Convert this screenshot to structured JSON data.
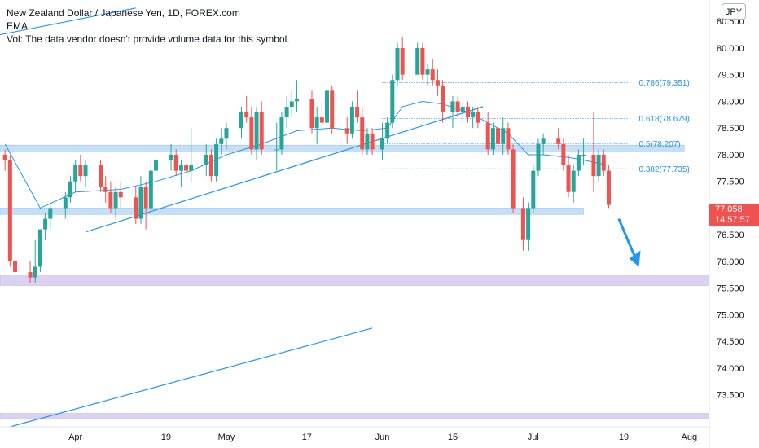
{
  "legend": {
    "title": "New Zealand Dollar / Japanese Yen, 1D, FOREX.com",
    "indicator": "EMA",
    "volume_note": "Vol: The data vendor doesn't provide volume data for this symbol."
  },
  "currency_label": "JPY",
  "last_price": {
    "value": "77.058",
    "countdown": "14:57:57"
  },
  "colors": {
    "up": "#26a69a",
    "down": "#ef5350",
    "ema": "#2196f3",
    "zone_blue": "#bbd9f7",
    "zone_purple": "#d5c9ee",
    "arrow": "#2196f3"
  },
  "chart_data": {
    "type": "candlestick",
    "symbol": "NZDJPY",
    "timeframe": "1D",
    "ylim": [
      72.9,
      80.9
    ],
    "xlim": [
      "2020-03-17",
      "2020-08-05"
    ],
    "x_ticks": [
      {
        "label": "Apr",
        "date": "2020-04-01"
      },
      {
        "label": "19",
        "date": "2020-04-19"
      },
      {
        "label": "May",
        "date": "2020-05-01"
      },
      {
        "label": "17",
        "date": "2020-05-17"
      },
      {
        "label": "Jun",
        "date": "2020-06-01"
      },
      {
        "label": "15",
        "date": "2020-06-15"
      },
      {
        "label": "Jul",
        "date": "2020-07-01"
      },
      {
        "label": "19",
        "date": "2020-07-19"
      },
      {
        "label": "Aug",
        "date": "2020-08-01"
      }
    ],
    "y_ticks": [
      "80.500",
      "80.000",
      "79.500",
      "79.000",
      "78.500",
      "78.000",
      "77.500",
      "77.000",
      "76.500",
      "76.000",
      "75.500",
      "75.000",
      "74.500",
      "74.000",
      "73.500"
    ],
    "fib_levels": [
      {
        "label": "0.786(79.351)",
        "price": 79.351
      },
      {
        "label": "0.618(78.679)",
        "price": 78.679
      },
      {
        "label": "0.5(78.207)",
        "price": 78.207
      },
      {
        "label": "0.382(77.735)",
        "price": 77.735
      }
    ],
    "zones": [
      {
        "kind": "resistance",
        "low": 78.05,
        "high": 78.18,
        "color": "blue",
        "from": "2020-03-17",
        "to": "2020-07-31"
      },
      {
        "kind": "support",
        "low": 76.88,
        "high": 77.0,
        "color": "blue",
        "from": "2020-03-17",
        "to": "2020-07-11"
      },
      {
        "kind": "demand",
        "low": 75.55,
        "high": 75.75,
        "color": "purple",
        "from": "2020-03-17",
        "to": "2020-08-05"
      },
      {
        "kind": "demand",
        "low": 73.05,
        "high": 73.15,
        "color": "purple",
        "from": "2020-03-17",
        "to": "2020-08-05"
      }
    ],
    "trendlines": [
      {
        "from": {
          "date": "2020-03-17",
          "price": 80.25
        },
        "to": {
          "date": "2020-04-13",
          "price": 80.75
        }
      },
      {
        "from": {
          "date": "2020-04-03",
          "price": 76.55
        },
        "to": {
          "date": "2020-06-21",
          "price": 78.9
        }
      },
      {
        "from": {
          "date": "2020-03-19",
          "price": 72.9
        },
        "to": {
          "date": "2020-05-30",
          "price": 74.75
        }
      }
    ],
    "candles": [
      {
        "date": "2020-03-18",
        "o": 78.0,
        "h": 78.1,
        "l": 77.7,
        "c": 77.9
      },
      {
        "date": "2020-03-19",
        "o": 77.9,
        "h": 78.0,
        "l": 75.9,
        "c": 76.0
      },
      {
        "date": "2020-03-20",
        "o": 76.0,
        "h": 76.2,
        "l": 75.6,
        "c": 75.8
      },
      {
        "date": "2020-03-23",
        "o": 75.8,
        "h": 76.0,
        "l": 75.6,
        "c": 75.7
      },
      {
        "date": "2020-03-24",
        "o": 75.7,
        "h": 76.4,
        "l": 75.6,
        "c": 75.9
      },
      {
        "date": "2020-03-25",
        "o": 75.9,
        "h": 76.6,
        "l": 75.8,
        "c": 76.6
      },
      {
        "date": "2020-03-26",
        "o": 76.6,
        "h": 76.9,
        "l": 76.4,
        "c": 76.8
      },
      {
        "date": "2020-03-27",
        "o": 76.8,
        "h": 77.1,
        "l": 76.6,
        "c": 77.0
      },
      {
        "date": "2020-03-30",
        "o": 77.0,
        "h": 77.3,
        "l": 76.8,
        "c": 77.2
      },
      {
        "date": "2020-03-31",
        "o": 77.2,
        "h": 77.6,
        "l": 77.1,
        "c": 77.5
      },
      {
        "date": "2020-04-01",
        "o": 77.5,
        "h": 77.9,
        "l": 77.3,
        "c": 77.8
      },
      {
        "date": "2020-04-02",
        "o": 77.8,
        "h": 78.0,
        "l": 77.5,
        "c": 77.6
      },
      {
        "date": "2020-04-03",
        "o": 77.6,
        "h": 77.9,
        "l": 77.4,
        "c": 77.8
      },
      {
        "date": "2020-04-06",
        "o": 77.8,
        "h": 77.9,
        "l": 77.3,
        "c": 77.4
      },
      {
        "date": "2020-04-07",
        "o": 77.4,
        "h": 77.6,
        "l": 77.1,
        "c": 77.3
      },
      {
        "date": "2020-04-08",
        "o": 77.3,
        "h": 77.5,
        "l": 76.9,
        "c": 77.0
      },
      {
        "date": "2020-04-09",
        "o": 77.0,
        "h": 77.4,
        "l": 76.8,
        "c": 77.3
      },
      {
        "date": "2020-04-10",
        "o": 77.3,
        "h": 77.5,
        "l": 77.0,
        "c": 77.2
      },
      {
        "date": "2020-04-13",
        "o": 77.2,
        "h": 77.4,
        "l": 76.7,
        "c": 76.8
      },
      {
        "date": "2020-04-14",
        "o": 76.8,
        "h": 77.6,
        "l": 76.7,
        "c": 77.4
      },
      {
        "date": "2020-04-15",
        "o": 77.4,
        "h": 77.5,
        "l": 76.6,
        "c": 77.0
      },
      {
        "date": "2020-04-16",
        "o": 77.0,
        "h": 77.8,
        "l": 76.9,
        "c": 77.7
      },
      {
        "date": "2020-04-17",
        "o": 77.7,
        "h": 78.0,
        "l": 77.5,
        "c": 77.9
      },
      {
        "date": "2020-04-20",
        "o": 77.9,
        "h": 78.2,
        "l": 77.7,
        "c": 78.0
      },
      {
        "date": "2020-04-21",
        "o": 78.0,
        "h": 78.1,
        "l": 77.6,
        "c": 77.7
      },
      {
        "date": "2020-04-22",
        "o": 77.7,
        "h": 77.9,
        "l": 77.4,
        "c": 77.8
      },
      {
        "date": "2020-04-23",
        "o": 77.8,
        "h": 78.0,
        "l": 77.5,
        "c": 77.7
      },
      {
        "date": "2020-04-24",
        "o": 77.7,
        "h": 78.5,
        "l": 77.5,
        "c": 77.8
      },
      {
        "date": "2020-04-27",
        "o": 77.8,
        "h": 78.2,
        "l": 77.6,
        "c": 78.0
      },
      {
        "date": "2020-04-28",
        "o": 78.0,
        "h": 78.1,
        "l": 77.5,
        "c": 77.6
      },
      {
        "date": "2020-04-29",
        "o": 77.6,
        "h": 78.3,
        "l": 77.5,
        "c": 78.2
      },
      {
        "date": "2020-04-30",
        "o": 78.2,
        "h": 78.5,
        "l": 78.0,
        "c": 78.3
      },
      {
        "date": "2020-05-01",
        "o": 78.3,
        "h": 78.6,
        "l": 78.1,
        "c": 78.5
      },
      {
        "date": "2020-05-04",
        "o": 78.5,
        "h": 78.9,
        "l": 78.3,
        "c": 78.8
      },
      {
        "date": "2020-05-05",
        "o": 78.8,
        "h": 79.1,
        "l": 78.6,
        "c": 78.7
      },
      {
        "date": "2020-05-06",
        "o": 78.7,
        "h": 78.9,
        "l": 78.0,
        "c": 78.1
      },
      {
        "date": "2020-05-07",
        "o": 78.1,
        "h": 78.9,
        "l": 77.9,
        "c": 78.8
      },
      {
        "date": "2020-05-08",
        "o": 78.8,
        "h": 79.0,
        "l": 78.0,
        "c": 78.1
      },
      {
        "date": "2020-05-11",
        "o": 78.1,
        "h": 78.6,
        "l": 77.7,
        "c": 78.1
      },
      {
        "date": "2020-05-12",
        "o": 78.1,
        "h": 78.8,
        "l": 78.0,
        "c": 78.7
      },
      {
        "date": "2020-05-13",
        "o": 78.7,
        "h": 79.1,
        "l": 78.5,
        "c": 78.9
      },
      {
        "date": "2020-05-14",
        "o": 78.9,
        "h": 79.2,
        "l": 78.7,
        "c": 79.0
      },
      {
        "date": "2020-05-15",
        "o": 79.0,
        "h": 79.4,
        "l": 78.8,
        "c": 79.05
      },
      {
        "date": "2020-05-18",
        "o": 79.05,
        "h": 79.2,
        "l": 78.4,
        "c": 78.5
      },
      {
        "date": "2020-05-19",
        "o": 78.5,
        "h": 78.9,
        "l": 78.2,
        "c": 78.7
      },
      {
        "date": "2020-05-20",
        "o": 78.7,
        "h": 79.0,
        "l": 78.5,
        "c": 78.6
      },
      {
        "date": "2020-05-21",
        "o": 78.6,
        "h": 79.3,
        "l": 78.5,
        "c": 79.2
      },
      {
        "date": "2020-05-22",
        "o": 79.2,
        "h": 79.3,
        "l": 78.4,
        "c": 78.5
      },
      {
        "date": "2020-05-25",
        "o": 78.5,
        "h": 78.7,
        "l": 78.2,
        "c": 78.4
      },
      {
        "date": "2020-05-26",
        "o": 78.4,
        "h": 79.0,
        "l": 78.3,
        "c": 78.9
      },
      {
        "date": "2020-05-27",
        "o": 78.9,
        "h": 79.2,
        "l": 78.6,
        "c": 78.7
      },
      {
        "date": "2020-05-28",
        "o": 78.7,
        "h": 78.9,
        "l": 78.0,
        "c": 78.1
      },
      {
        "date": "2020-05-29",
        "o": 78.1,
        "h": 78.5,
        "l": 78.0,
        "c": 78.4
      },
      {
        "date": "2020-05-30",
        "o": 78.4,
        "h": 78.5,
        "l": 78.0,
        "c": 78.1
      },
      {
        "date": "2020-06-01",
        "o": 78.1,
        "h": 78.6,
        "l": 77.9,
        "c": 78.3
      },
      {
        "date": "2020-06-02",
        "o": 78.3,
        "h": 78.7,
        "l": 78.2,
        "c": 78.6
      },
      {
        "date": "2020-06-03",
        "o": 78.6,
        "h": 79.5,
        "l": 78.5,
        "c": 79.4
      },
      {
        "date": "2020-06-04",
        "o": 79.4,
        "h": 80.1,
        "l": 79.3,
        "c": 80.0
      },
      {
        "date": "2020-06-05",
        "o": 80.0,
        "h": 80.2,
        "l": 79.4,
        "c": 79.5
      },
      {
        "date": "2020-06-08",
        "o": 79.5,
        "h": 80.1,
        "l": 79.5,
        "c": 80.0
      },
      {
        "date": "2020-06-09",
        "o": 80.0,
        "h": 80.1,
        "l": 79.4,
        "c": 79.5
      },
      {
        "date": "2020-06-10",
        "o": 79.5,
        "h": 79.7,
        "l": 79.3,
        "c": 79.6
      },
      {
        "date": "2020-06-11",
        "o": 79.6,
        "h": 79.8,
        "l": 79.3,
        "c": 79.4
      },
      {
        "date": "2020-06-12",
        "o": 79.4,
        "h": 79.6,
        "l": 79.1,
        "c": 79.3
      },
      {
        "date": "2020-06-13",
        "o": 79.3,
        "h": 79.4,
        "l": 78.6,
        "c": 78.8
      },
      {
        "date": "2020-06-15",
        "o": 78.8,
        "h": 79.1,
        "l": 78.5,
        "c": 79.0
      },
      {
        "date": "2020-06-16",
        "o": 79.0,
        "h": 79.1,
        "l": 78.7,
        "c": 78.8
      },
      {
        "date": "2020-06-17",
        "o": 78.8,
        "h": 79.0,
        "l": 78.6,
        "c": 78.9
      },
      {
        "date": "2020-06-18",
        "o": 78.9,
        "h": 79.0,
        "l": 78.6,
        "c": 78.7
      },
      {
        "date": "2020-06-19",
        "o": 78.7,
        "h": 78.9,
        "l": 78.5,
        "c": 78.8
      },
      {
        "date": "2020-06-20",
        "o": 78.8,
        "h": 78.9,
        "l": 78.5,
        "c": 78.6
      },
      {
        "date": "2020-06-22",
        "o": 78.6,
        "h": 78.8,
        "l": 78.0,
        "c": 78.1
      },
      {
        "date": "2020-06-23",
        "o": 78.1,
        "h": 78.6,
        "l": 78.0,
        "c": 78.5
      },
      {
        "date": "2020-06-24",
        "o": 78.5,
        "h": 78.6,
        "l": 78.0,
        "c": 78.2
      },
      {
        "date": "2020-06-25",
        "o": 78.2,
        "h": 78.7,
        "l": 78.0,
        "c": 78.5
      },
      {
        "date": "2020-06-26",
        "o": 78.5,
        "h": 78.6,
        "l": 78.0,
        "c": 78.1
      },
      {
        "date": "2020-06-27",
        "o": 78.1,
        "h": 78.2,
        "l": 76.9,
        "c": 77.0
      },
      {
        "date": "2020-06-29",
        "o": 77.0,
        "h": 77.2,
        "l": 76.2,
        "c": 76.4
      },
      {
        "date": "2020-06-30",
        "o": 76.4,
        "h": 77.1,
        "l": 76.2,
        "c": 77.0
      },
      {
        "date": "2020-07-01",
        "o": 77.0,
        "h": 77.8,
        "l": 76.9,
        "c": 77.7
      },
      {
        "date": "2020-07-02",
        "o": 77.7,
        "h": 78.3,
        "l": 77.6,
        "c": 78.2
      },
      {
        "date": "2020-07-03",
        "o": 78.2,
        "h": 78.4,
        "l": 78.0,
        "c": 78.3
      },
      {
        "date": "2020-07-06",
        "o": 78.3,
        "h": 78.5,
        "l": 78.1,
        "c": 78.2
      },
      {
        "date": "2020-07-07",
        "o": 78.2,
        "h": 78.3,
        "l": 77.7,
        "c": 77.8
      },
      {
        "date": "2020-07-08",
        "o": 77.8,
        "h": 78.0,
        "l": 77.2,
        "c": 77.3
      },
      {
        "date": "2020-07-09",
        "o": 77.3,
        "h": 77.8,
        "l": 77.1,
        "c": 77.7
      },
      {
        "date": "2020-07-10",
        "o": 77.7,
        "h": 78.1,
        "l": 77.6,
        "c": 78.0
      },
      {
        "date": "2020-07-11",
        "o": 78.0,
        "h": 78.3,
        "l": 77.8,
        "c": 78.0
      },
      {
        "date": "2020-07-13",
        "o": 78.0,
        "h": 78.8,
        "l": 77.3,
        "c": 77.6
      },
      {
        "date": "2020-07-14",
        "o": 77.6,
        "h": 78.1,
        "l": 77.5,
        "c": 78.0
      },
      {
        "date": "2020-07-15",
        "o": 78.0,
        "h": 78.1,
        "l": 77.6,
        "c": 77.7
      },
      {
        "date": "2020-07-16",
        "o": 77.7,
        "h": 77.8,
        "l": 77.0,
        "c": 77.058
      }
    ],
    "ema": [
      {
        "date": "2020-03-18",
        "v": 78.2
      },
      {
        "date": "2020-03-25",
        "v": 77.0
      },
      {
        "date": "2020-04-01",
        "v": 77.3
      },
      {
        "date": "2020-04-10",
        "v": 77.35
      },
      {
        "date": "2020-04-17",
        "v": 77.5
      },
      {
        "date": "2020-04-24",
        "v": 77.7
      },
      {
        "date": "2020-05-01",
        "v": 78.0
      },
      {
        "date": "2020-05-08",
        "v": 78.2
      },
      {
        "date": "2020-05-15",
        "v": 78.45
      },
      {
        "date": "2020-05-22",
        "v": 78.5
      },
      {
        "date": "2020-05-28",
        "v": 78.45
      },
      {
        "date": "2020-06-02",
        "v": 78.5
      },
      {
        "date": "2020-06-05",
        "v": 78.9
      },
      {
        "date": "2020-06-09",
        "v": 79.0
      },
      {
        "date": "2020-06-13",
        "v": 78.95
      },
      {
        "date": "2020-06-18",
        "v": 78.8
      },
      {
        "date": "2020-06-22",
        "v": 78.6
      },
      {
        "date": "2020-06-26",
        "v": 78.4
      },
      {
        "date": "2020-06-30",
        "v": 78.0
      },
      {
        "date": "2020-07-03",
        "v": 78.0
      },
      {
        "date": "2020-07-08",
        "v": 77.95
      },
      {
        "date": "2020-07-11",
        "v": 77.9
      },
      {
        "date": "2020-07-16",
        "v": 77.8
      }
    ],
    "projection_arrow": {
      "from": {
        "date": "2020-07-18",
        "price": 76.8
      },
      "to": {
        "date": "2020-07-22",
        "price": 75.9
      }
    }
  }
}
